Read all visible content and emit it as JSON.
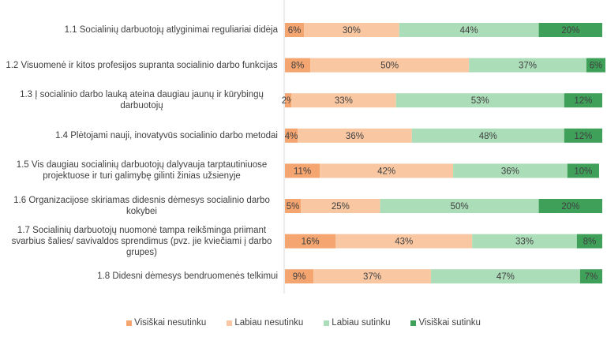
{
  "chart_data": {
    "type": "bar",
    "orientation": "horizontal",
    "stacked": true,
    "categories": [
      "1.1 Socialinių darbuotojų atlyginimai reguliariai didėja",
      "1.2 Visuomenė ir kitos profesijos supranta socialinio darbo funkcijas",
      "1.3 Į socialinio darbo lauką ateina daugiau jaunų ir kūrybingų darbuotojų",
      "1.4 Plėtojami nauji, inovatyvūs socialinio darbo metodai",
      "1.5 Vis daugiau socialinių darbuotojų dalyvauja tarptautiniuose projektuose ir turi galimybę gilinti žinias užsienyje",
      "1.6 Organizacijose skiriamas didesnis dėmesys socialinio darbo kokybei",
      "1.7 Socialinių darbuotojų nuomonė  tampa reikšminga priimant svarbius šalies/ savivaldos sprendimus (pvz. jie kviečiami į darbo grupes)",
      "1.8 Didesni dėmesys bendruomenės telkimui"
    ],
    "series": [
      {
        "name": "Visiškai nesutinku",
        "color": "#F4A570",
        "values": [
          6,
          8,
          2,
          4,
          11,
          5,
          16,
          9
        ]
      },
      {
        "name": "Labiau nesutinku",
        "color": "#F9C8A3",
        "values": [
          30,
          50,
          33,
          36,
          42,
          25,
          43,
          37
        ]
      },
      {
        "name": "Labiau sutinku",
        "color": "#ABDDB8",
        "values": [
          44,
          37,
          53,
          48,
          36,
          50,
          33,
          47
        ]
      },
      {
        "name": "Visiškai sutinku",
        "color": "#3FA05A",
        "values": [
          20,
          6,
          12,
          12,
          10,
          20,
          8,
          7
        ]
      }
    ],
    "value_format": "percent",
    "xlim": [
      0,
      100
    ],
    "grid": false,
    "legend_position": "bottom",
    "title": "",
    "xlabel": "",
    "ylabel": ""
  }
}
